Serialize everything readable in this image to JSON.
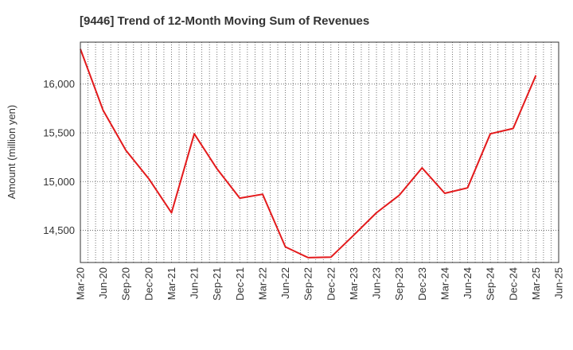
{
  "chart_data": {
    "type": "line",
    "title": "[9446]  Trend of 12-Month Moving Sum of Revenues",
    "ylabel": "Amount (million yen)",
    "xlabel": "",
    "x": [
      "Mar-20",
      "Jun-20",
      "Sep-20",
      "Dec-20",
      "Mar-21",
      "Jun-21",
      "Sep-21",
      "Dec-21",
      "Mar-22",
      "Jun-22",
      "Sep-22",
      "Dec-22",
      "Mar-23",
      "Jun-23",
      "Sep-23",
      "Dec-23",
      "Mar-24",
      "Jun-24",
      "Sep-24",
      "Dec-24",
      "Mar-25",
      "Jun-25"
    ],
    "ylim": [
      14170,
      16430
    ],
    "yticks": [
      14500,
      15000,
      15500,
      16000
    ],
    "ytick_labels": [
      "14,500",
      "15,000",
      "15,500",
      "16,000"
    ],
    "grid": true,
    "series": [
      {
        "color": "#e31a1c",
        "values": [
          16360,
          15730,
          15320,
          15030,
          14680,
          15490,
          15130,
          14830,
          14870,
          14330,
          14220,
          14225,
          14450,
          14680,
          14860,
          15140,
          14880,
          14935,
          15490,
          15545,
          16090,
          null
        ]
      }
    ]
  }
}
